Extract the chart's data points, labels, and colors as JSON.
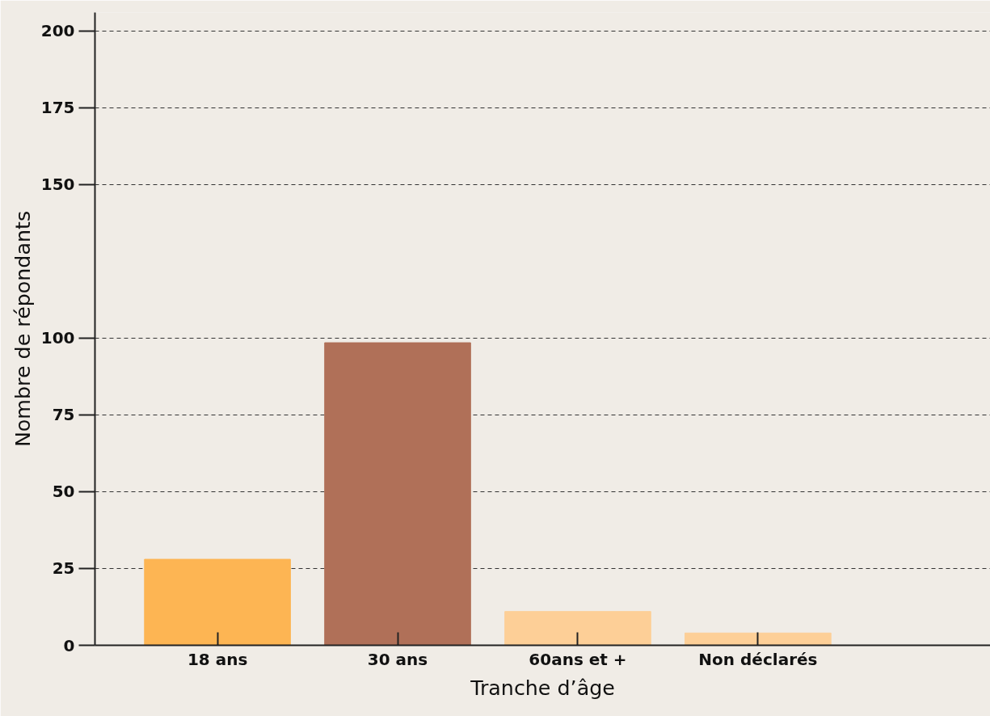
{
  "chart_data": {
    "type": "bar",
    "xlabel": "Tranche d’âge",
    "ylabel": "Nombre de répondants",
    "categories": [
      "18 ans",
      "30 ans",
      "60ans et +",
      "Non déclarés"
    ],
    "values": [
      28,
      98.5,
      11,
      4
    ],
    "colors": [
      "#fdb553",
      "#b07058",
      "#fdcf97",
      "#fdcf97"
    ],
    "ylim": [
      0,
      206
    ],
    "yticks": [
      0,
      25,
      50,
      75,
      100,
      150,
      175,
      200
    ],
    "grid": "y"
  }
}
